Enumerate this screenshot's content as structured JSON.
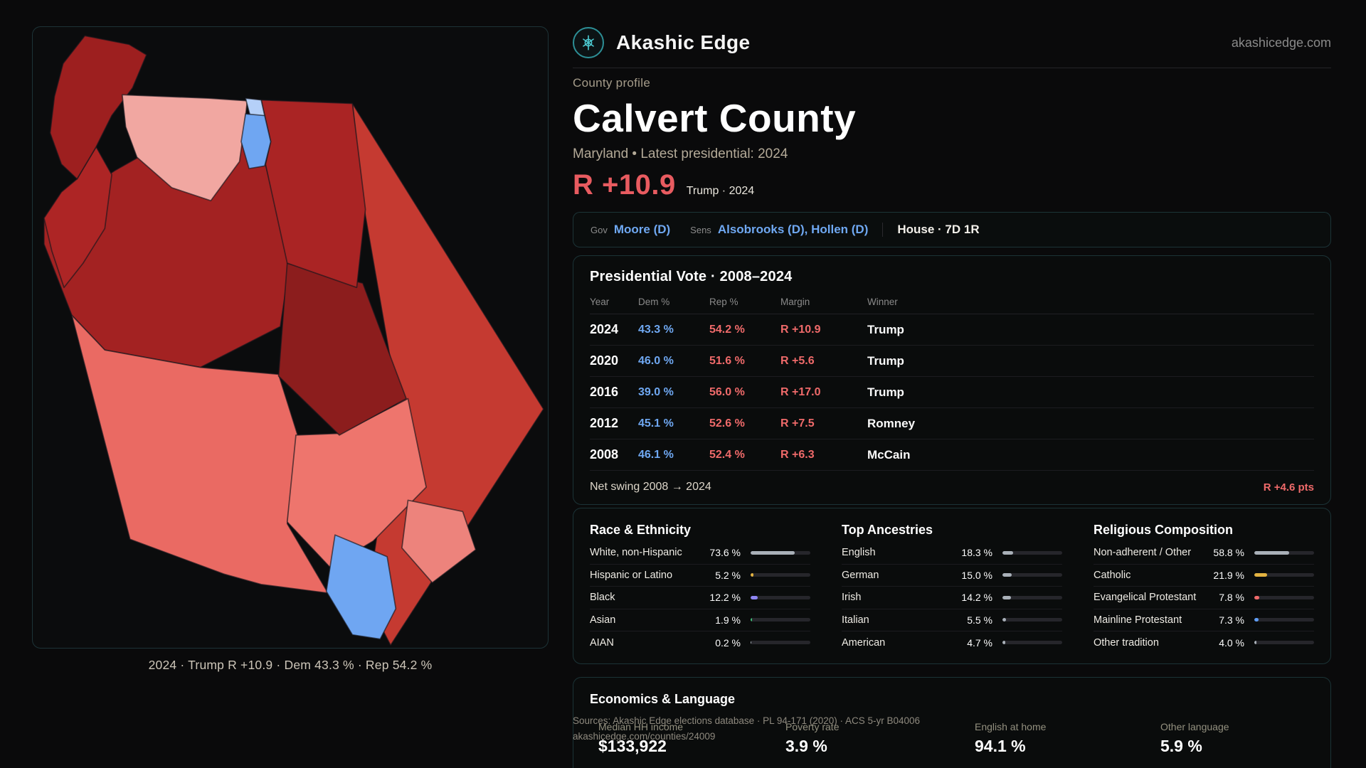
{
  "brand": {
    "name": "Akashic Edge",
    "site": "akashicedge.com"
  },
  "map": {
    "caption": "2024 · Trump R +10.9 · Dem 43.3 % · Rep 54.2 %"
  },
  "profile": {
    "eyebrow": "County profile",
    "title": "Calvert County",
    "subtitle": "Maryland • Latest presidential: 2024",
    "margin_value": "R +10.9",
    "margin_context": "Trump · 2024"
  },
  "officials": {
    "gov_label": "Gov",
    "gov_value": "Moore (D)",
    "sens_label": "Sens",
    "sens_value": "Alsobrooks (D), Hollen (D)",
    "house_value": "House · 7D 1R"
  },
  "vote_table": {
    "title": "Presidential Vote · 2008–2024",
    "columns": [
      "Year",
      "Dem %",
      "Rep %",
      "Margin",
      "Winner"
    ],
    "rows": [
      {
        "year": "2024",
        "dem": "43.3 %",
        "rep": "54.2 %",
        "margin": "R +10.9",
        "winner": "Trump"
      },
      {
        "year": "2020",
        "dem": "46.0 %",
        "rep": "51.6 %",
        "margin": "R +5.6",
        "winner": "Trump"
      },
      {
        "year": "2016",
        "dem": "39.0 %",
        "rep": "56.0 %",
        "margin": "R +17.0",
        "winner": "Trump"
      },
      {
        "year": "2012",
        "dem": "45.1 %",
        "rep": "52.6 %",
        "margin": "R +7.5",
        "winner": "Romney"
      },
      {
        "year": "2008",
        "dem": "46.1 %",
        "rep": "52.4 %",
        "margin": "R +6.3",
        "winner": "McCain"
      }
    ],
    "net_swing_label": "Net swing 2008 → 2024",
    "net_swing_value": "R +4.6 pts"
  },
  "demographics": {
    "race": {
      "title": "Race & Ethnicity",
      "rows": [
        {
          "label": "White, non-Hispanic",
          "value": "73.6 %",
          "pct": 73.6,
          "color": "#a9b0b8"
        },
        {
          "label": "Hispanic or Latino",
          "value": "5.2 %",
          "pct": 5.2,
          "color": "#e3b341"
        },
        {
          "label": "Black",
          "value": "12.2 %",
          "pct": 12.2,
          "color": "#8f86f2"
        },
        {
          "label": "Asian",
          "value": "1.9 %",
          "pct": 1.9,
          "color": "#3fbf77"
        },
        {
          "label": "AIAN",
          "value": "0.2 %",
          "pct": 0.2,
          "color": "#a9b0b8"
        }
      ]
    },
    "ancestries": {
      "title": "Top Ancestries",
      "rows": [
        {
          "label": "English",
          "value": "18.3 %",
          "pct": 18.3,
          "color": "#a9b0b8"
        },
        {
          "label": "German",
          "value": "15.0 %",
          "pct": 15.0,
          "color": "#a9b0b8"
        },
        {
          "label": "Irish",
          "value": "14.2 %",
          "pct": 14.2,
          "color": "#a9b0b8"
        },
        {
          "label": "Italian",
          "value": "5.5 %",
          "pct": 5.5,
          "color": "#a9b0b8"
        },
        {
          "label": "American",
          "value": "4.7 %",
          "pct": 4.7,
          "color": "#a9b0b8"
        }
      ]
    },
    "religion": {
      "title": "Religious Composition",
      "rows": [
        {
          "label": "Non-adherent / Other",
          "value": "58.8 %",
          "pct": 58.8,
          "color": "#a9b0b8"
        },
        {
          "label": "Catholic",
          "value": "21.9 %",
          "pct": 21.9,
          "color": "#e3b341"
        },
        {
          "label": "Evangelical Protestant",
          "value": "7.8 %",
          "pct": 7.8,
          "color": "#ef6a6a"
        },
        {
          "label": "Mainline Protestant",
          "value": "7.3 %",
          "pct": 7.3,
          "color": "#5f9df5"
        },
        {
          "label": "Other tradition",
          "value": "4.0 %",
          "pct": 4.0,
          "color": "#a9b0b8"
        }
      ]
    }
  },
  "economics": {
    "title": "Economics & Language",
    "stats": [
      {
        "label": "Median HH income",
        "value": "$133,922"
      },
      {
        "label": "Poverty rate",
        "value": "3.9 %"
      },
      {
        "label": "English at home",
        "value": "94.1 %"
      },
      {
        "label": "Other language",
        "value": "5.9 %"
      }
    ]
  },
  "footer": {
    "sources": "Sources: Akashic Edge elections database · PL 94-171 (2020) · ACS 5-yr B04006",
    "permalink": "akashicedge.com/counties/24009"
  },
  "colors": {
    "dem": "#6fa8f2",
    "rep": "#ef6a6a",
    "accent": "#39c2c9"
  }
}
